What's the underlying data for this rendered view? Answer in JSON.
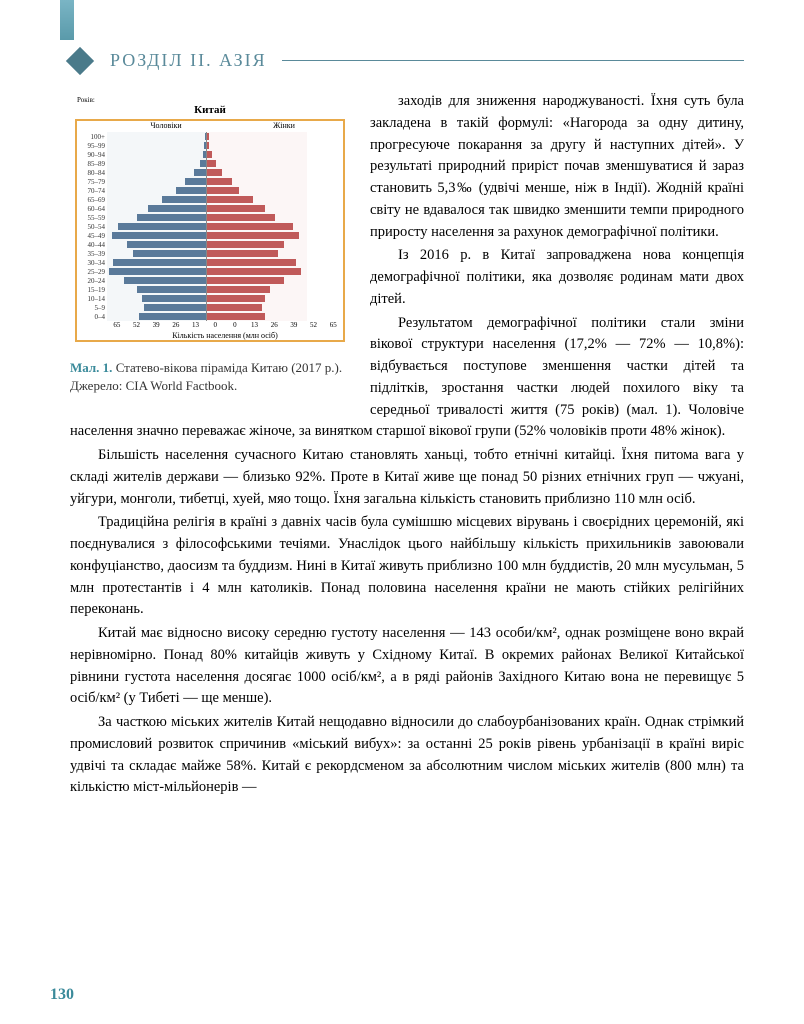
{
  "header": {
    "section_title": "РОЗДІЛ II. АЗІЯ"
  },
  "chart": {
    "title": "Китай",
    "y_axis_label": "Років:",
    "male_label": "Чоловіки",
    "female_label": "Жінки",
    "x_axis_title": "Кількість населення (млн осіб)",
    "age_groups": [
      "100+",
      "95–99",
      "90–94",
      "85–89",
      "80–84",
      "75–79",
      "70–74",
      "65–69",
      "60–64",
      "55–59",
      "50–54",
      "45–49",
      "40–44",
      "35–39",
      "30–34",
      "25–29",
      "20–24",
      "15–19",
      "10–14",
      "5–9",
      "0–4"
    ],
    "male_values": [
      0.5,
      1,
      2,
      4,
      8,
      14,
      20,
      29,
      38,
      45,
      58,
      62,
      52,
      48,
      61,
      64,
      54,
      45,
      42,
      41,
      44
    ],
    "female_values": [
      1,
      1.5,
      3,
      6,
      10,
      16,
      21,
      30,
      38,
      44,
      56,
      60,
      50,
      46,
      58,
      61,
      50,
      41,
      38,
      36,
      38
    ],
    "max_value": 65,
    "x_ticks": [
      "65",
      "52",
      "39",
      "26",
      "13",
      "0",
      "0",
      "13",
      "26",
      "39",
      "52",
      "65"
    ],
    "male_color": "#5a7a9a",
    "female_color": "#c05a5a",
    "border_color": "#e8a94a"
  },
  "caption": {
    "label": "Мал. 1.",
    "text": "Статево-вікова піраміда Китаю (2017 р.). Джерело: CIA World Factbook."
  },
  "paragraphs": {
    "p1": "заходів для зниження народжуваності. Їхня суть була закладена в такій формулі: «Нагорода за одну дитину, прогресуюче покарання за другу й наступних дітей». У результаті природний приріст почав зменшуватися й зараз становить 5,3‰ (удвічі менше, ніж в Індії). Жодній країні світу не вдавалося так швидко зменшити темпи природного приросту населення за рахунок демографічної політики.",
    "p2": "Із 2016 р. в Китаї запроваджена нова концепція демографічної політики, яка дозволяє родинам мати двох дітей.",
    "p3": "Результатом демографічної політики стали зміни вікової структури населення (17,2% — 72% — 10,8%): відбувається поступове зменшення частки дітей та підлітків, зростання частки людей похилого віку та середньої тривалості життя (75 років) (мал. 1). Чоловіче населення значно переважає жіноче, за винятком старшої вікової групи (52% чоловіків проти 48% жінок).",
    "p4": "Більшість населення сучасного Китаю становлять ханьці, тобто етнічні китайці. Їхня питома вага у складі жителів держави — близько 92%. Проте в Китаї живе ще понад 50 різних етнічних груп — чжуані, уйгури, монголи, тибетці, хуей, мяо тощо. Їхня загальна кількість становить приблизно 110 млн осіб.",
    "p5": "Традиційна релігія в країні з давніх часів була сумішшю місцевих вірувань і своєрідних церемоній, які поєднувалися з філософськими течіями. Унаслідок цього найбільшу кількість прихильників завоювали конфуціанство, даосизм та буддизм. Нині в Китаї живуть приблизно 100 млн буддистів, 20 млн мусульман, 5 млн протестантів і 4 млн католиків. Понад половина населення країни не мають стійких релігійних переконань.",
    "p6": "Китай має відносно високу середню густоту населення — 143 особи/км², однак розміщене воно вкрай нерівномірно. Понад 80% китайців живуть у Східному Китаї. В окремих районах Великої Китайської рівнини густота населення досягає 1000 осіб/км², а в ряді районів Західного Китаю вона не перевищує 5 осіб/км² (у Тибеті — ще менше).",
    "p7": "За часткою міських жителів Китай нещодавно відносили до слабоурбанізованих країн. Однак стрімкий промисловий розвиток спричинив «міський вибух»: за останні 25 років рівень урбанізації в країні виріс удвічі та складає майже 58%. Китай є рекордсменом за абсолютним числом міських жителів (800 млн) та кількістю міст-мільйонерів —"
  },
  "page_number": "130"
}
